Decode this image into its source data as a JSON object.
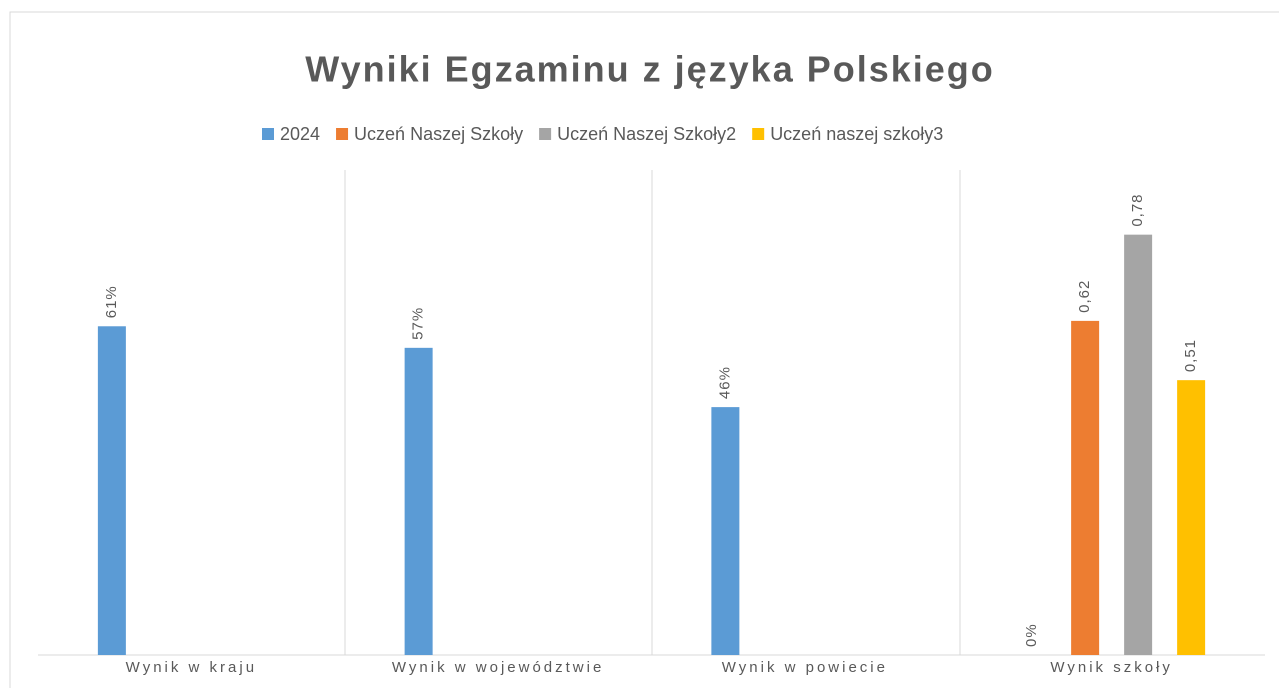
{
  "chart_data": {
    "type": "bar",
    "title": "Wyniki Egzaminu z języka Polskiego",
    "categories": [
      "Wynik w kraju",
      "Wynik w województwie",
      "Wynik w powiecie",
      "Wynik szkoły"
    ],
    "series": [
      {
        "name": "2024",
        "color": "#5b9bd5",
        "values": [
          0.61,
          0.57,
          0.46,
          0
        ],
        "value_labels": [
          "61%",
          "57%",
          "46%",
          "0%"
        ]
      },
      {
        "name": "Uczeń Naszej Szkoły",
        "color": "#ed7d31",
        "values": [
          null,
          null,
          null,
          0.62
        ],
        "value_labels": [
          null,
          null,
          null,
          "0,62"
        ]
      },
      {
        "name": "Uczeń Naszej Szkoły2",
        "color": "#a5a5a5",
        "values": [
          null,
          null,
          null,
          0.78
        ],
        "value_labels": [
          null,
          null,
          null,
          "0,78"
        ]
      },
      {
        "name": "Uczeń naszej szkoły3",
        "color": "#ffc000",
        "values": [
          null,
          null,
          null,
          0.51
        ],
        "value_labels": [
          null,
          null,
          null,
          "0,51"
        ]
      }
    ],
    "ylim": [
      0,
      0.9
    ]
  }
}
